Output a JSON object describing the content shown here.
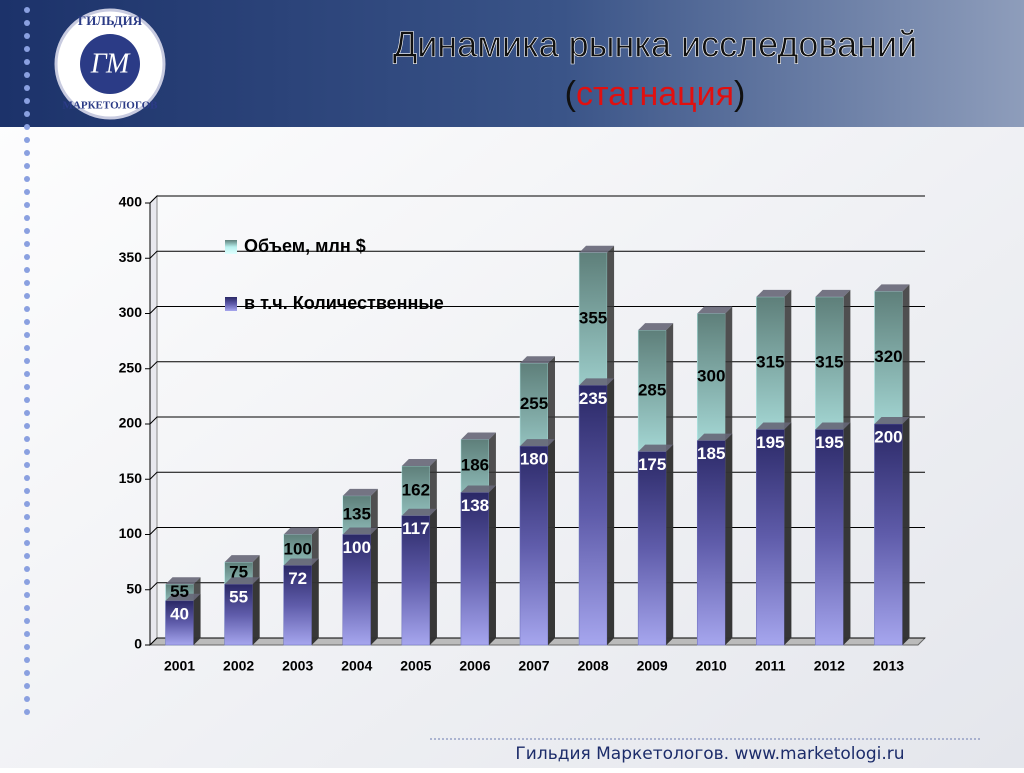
{
  "logo": {
    "top": "ГИЛЬДИЯ",
    "bottom": "МАРКЕТОЛОГОВ",
    "mark": "ГМ"
  },
  "footer": "Гильдия Маркетологов. www.marketologi.ru",
  "chart_data": {
    "type": "bar",
    "title": "Динамика рынка исследований",
    "subtitle": [
      "(",
      "стагнация",
      ")"
    ],
    "categories": [
      "2001",
      "2002",
      "2003",
      "2004",
      "2005",
      "2006",
      "2007",
      "2008",
      "2009",
      "2010",
      "2011",
      "2012",
      "2013"
    ],
    "series": [
      {
        "name": "Объем, млн $",
        "color": "#b8f0ee",
        "values": [
          55,
          75,
          100,
          135,
          162,
          186,
          255,
          355,
          285,
          300,
          315,
          315,
          320
        ]
      },
      {
        "name": "в т.ч. Количественные",
        "color": "#6a68b8",
        "values": [
          40,
          55,
          72,
          100,
          117,
          138,
          180,
          235,
          175,
          185,
          195,
          195,
          200
        ]
      }
    ],
    "ylim": [
      0,
      400
    ],
    "yticks": [
      0,
      50,
      100,
      150,
      200,
      250,
      300,
      350,
      400
    ],
    "grid": true
  }
}
